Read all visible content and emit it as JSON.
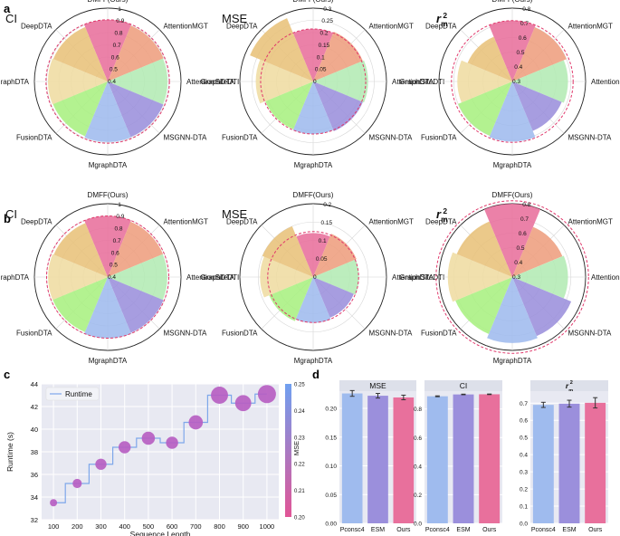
{
  "panel_labels": [
    "a",
    "b",
    "c",
    "d"
  ],
  "colors": {
    "DMFF(Ours)": "#e8709c",
    "AttentionMGT": "#ee9e7e",
    "AttentionSiteDTI": "#b3ebb4",
    "MSGNN-DTA": "#9b8fdc",
    "MgraphDTA": "#9fbbee",
    "FusionDTA": "#a9f081",
    "GraphDTA": "#efdca2",
    "DeepDTA": "#e8c27a",
    "ref_circle": "#e0386b"
  },
  "chart_data": [
    {
      "id": "a-CI",
      "type": "polar_bar",
      "title": "CI",
      "categories": [
        "DMFF(Ours)",
        "AttentionMGT",
        "AttentionSiteDTI",
        "MSGNN-DTA",
        "MgraphDTA",
        "FusionDTA",
        "GraphDTA",
        "DeepDTA"
      ],
      "values": [
        0.905,
        0.895,
        0.89,
        0.893,
        0.895,
        0.885,
        0.889,
        0.882
      ],
      "rlim": [
        0.4,
        1.0
      ],
      "rticks": [
        "0.4",
        "0.5",
        "0.6",
        "0.7",
        "0.8",
        "0.9",
        "1"
      ],
      "reference": 0.905
    },
    {
      "id": "a-MSE",
      "type": "polar_bar",
      "title": "MSE",
      "categories": [
        "DMFF(Ours)",
        "AttentionMGT",
        "AttentionSiteDTI",
        "MSGNN-DTA",
        "MgraphDTA",
        "FusionDTA",
        "GraphDTA",
        "DeepDTA"
      ],
      "values": [
        0.215,
        0.22,
        0.225,
        0.22,
        0.215,
        0.212,
        0.235,
        0.28
      ],
      "rlim": [
        0,
        0.3
      ],
      "rticks": [
        "0",
        "0.05",
        "0.1",
        "0.15",
        "0.2",
        "0.25",
        "0.3"
      ],
      "reference": 0.215
    },
    {
      "id": "a-rm2",
      "type": "polar_bar",
      "title": "r_m^2",
      "categories": [
        "DMFF(Ours)",
        "AttentionMGT",
        "AttentionSiteDTI",
        "MSGNN-DTA",
        "MgraphDTA",
        "FusionDTA",
        "GraphDTA",
        "DeepDTA"
      ],
      "values": [
        0.715,
        0.7,
        0.68,
        0.665,
        0.71,
        0.7,
        0.675,
        0.63
      ],
      "rlim": [
        0.3,
        0.8
      ],
      "rticks": [
        "0.3",
        "0.4",
        "0.5",
        "0.6",
        "0.7",
        "0.8"
      ],
      "reference": 0.715
    },
    {
      "id": "b-CI",
      "type": "polar_bar",
      "title": "CI",
      "categories": [
        "DMFF(Ours)",
        "AttentionMGT",
        "AttentionSiteDTI",
        "MSGNN-DTA",
        "MgraphDTA",
        "FusionDTA",
        "GraphDTA",
        "DeepDTA"
      ],
      "values": [
        0.9,
        0.89,
        0.888,
        0.894,
        0.9,
        0.887,
        0.888,
        0.878
      ],
      "rlim": [
        0.4,
        1.0
      ],
      "rticks": [
        "0.4",
        "0.5",
        "0.6",
        "0.7",
        "0.8",
        "0.9",
        "1"
      ],
      "reference": 0.9
    },
    {
      "id": "b-MSE",
      "type": "polar_bar",
      "title": "MSE",
      "categories": [
        "DMFF(Ours)",
        "AttentionMGT",
        "AttentionSiteDTI",
        "MSGNN-DTA",
        "MgraphDTA",
        "FusionDTA",
        "GraphDTA",
        "DeepDTA"
      ],
      "values": [
        0.12,
        0.128,
        0.125,
        0.12,
        0.125,
        0.13,
        0.145,
        0.15
      ],
      "rlim": [
        0,
        0.2
      ],
      "rticks": [
        "0",
        "0.05",
        "0.1",
        "0.15",
        "0.2"
      ],
      "reference": 0.124
    },
    {
      "id": "b-rm2",
      "type": "polar_bar",
      "title": "r_m^2",
      "categories": [
        "DMFF(Ours)",
        "AttentionMGT",
        "AttentionSiteDTI",
        "MSGNN-DTA",
        "MgraphDTA",
        "FusionDTA",
        "GraphDTA",
        "DeepDTA"
      ],
      "values": [
        0.8,
        0.67,
        0.68,
        0.735,
        0.75,
        0.72,
        0.74,
        0.71
      ],
      "rlim": [
        0.3,
        0.8
      ],
      "rticks": [
        "0.3",
        "0.4",
        "0.5",
        "0.6",
        "0.7",
        "0.8"
      ],
      "reference": 0.82
    },
    {
      "id": "c",
      "type": "scatter",
      "xlabel": "Sequence Length",
      "ylabel": "Runtime (s)",
      "x": [
        100,
        200,
        300,
        400,
        500,
        600,
        700,
        800,
        900,
        1000
      ],
      "y": [
        33.5,
        35.2,
        36.9,
        38.4,
        39.2,
        38.8,
        40.6,
        43.0,
        42.3,
        43.1
      ],
      "mse": [
        0.209,
        0.211,
        0.213,
        0.214,
        0.215,
        0.214,
        0.216,
        0.219,
        0.218,
        0.22
      ],
      "xlim": [
        50,
        1050
      ],
      "ylim": [
        32,
        44
      ],
      "xticks": [
        100,
        200,
        300,
        400,
        500,
        600,
        700,
        800,
        900,
        1000
      ],
      "yticks": [
        32,
        34,
        36,
        38,
        40,
        42,
        44
      ],
      "legend": "Runtime",
      "colorbar": {
        "label": "MSE",
        "range": [
          0.2,
          0.25
        ],
        "ticks": [
          "0.20",
          "0.21",
          "0.22",
          "0.23",
          "0.24",
          "0.25"
        ]
      }
    },
    {
      "id": "d",
      "type": "bar",
      "categories": [
        "Pconsc4",
        "ESM",
        "Ours"
      ],
      "bar_colors": [
        "#9fbbee",
        "#9b8fdc",
        "#e8709c"
      ],
      "subplots": [
        {
          "title": "MSE",
          "values": [
            0.226,
            0.222,
            0.219
          ],
          "errors": [
            0.005,
            0.004,
            0.004
          ],
          "ylim": [
            0,
            0.23
          ],
          "yticks": [
            "0.00",
            "0.05",
            "0.10",
            "0.15",
            "0.20"
          ]
        },
        {
          "title": "CI",
          "values": [
            0.889,
            0.902,
            0.903
          ],
          "errors": [
            0.003,
            0.002,
            0.002
          ],
          "ylim": [
            0,
            0.925
          ],
          "yticks": [
            "0.0",
            "0.2",
            "0.4",
            "0.6",
            "0.8"
          ]
        },
        {
          "title": "r_m^2",
          "values": [
            0.69,
            0.697,
            0.702
          ],
          "errors": [
            0.015,
            0.02,
            0.03
          ],
          "ylim": [
            0,
            0.77
          ],
          "yticks": [
            "0.0",
            "0.1",
            "0.2",
            "0.3",
            "0.4",
            "0.5",
            "0.6",
            "0.7"
          ]
        }
      ]
    }
  ]
}
